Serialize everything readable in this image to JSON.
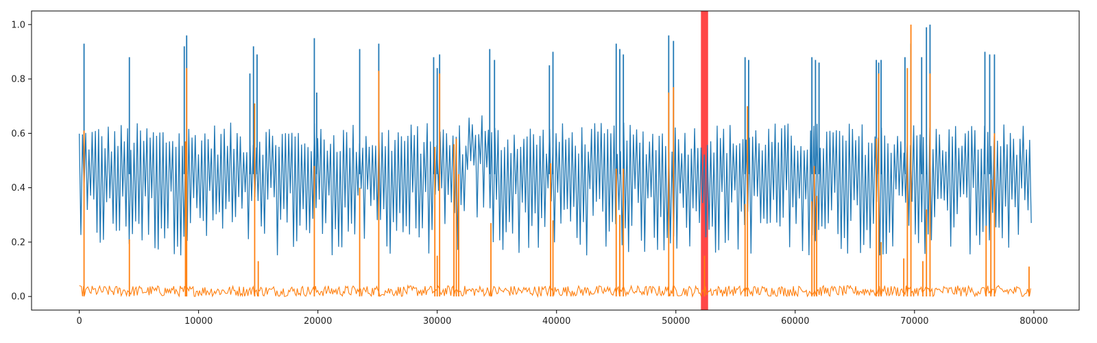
{
  "chart_data": {
    "type": "line",
    "xlim": [
      -4000,
      83800
    ],
    "ylim": [
      -0.05,
      1.05
    ],
    "x_ticks": [
      0,
      10000,
      20000,
      30000,
      40000,
      50000,
      60000,
      70000,
      80000
    ],
    "x_tick_labels": [
      "0",
      "10000",
      "20000",
      "30000",
      "40000",
      "50000",
      "60000",
      "70000",
      "80000"
    ],
    "y_ticks": [
      0.0,
      0.2,
      0.4,
      0.6,
      0.8,
      1.0
    ],
    "y_tick_labels": [
      "0.0",
      "0.2",
      "0.4",
      "0.6",
      "0.8",
      "1.0"
    ],
    "grid": false,
    "legend": "none",
    "highlight_region": {
      "x_start": 52100,
      "x_end": 52700,
      "color": "#ff0000",
      "opacity": 0.72
    },
    "series": [
      {
        "color": "#1f77b4",
        "x_range": [
          0,
          79800
        ],
        "oscillation": {
          "base_low": 0.19,
          "base_high": 0.61,
          "period": 270
        },
        "elevated_segments": [
          [
            32500,
            34200,
            0.66,
            0.3
          ]
        ],
        "spikes": [
          [
            400,
            0.93
          ],
          [
            4200,
            0.88
          ],
          [
            8800,
            0.92
          ],
          [
            9000,
            0.96
          ],
          [
            14300,
            0.82
          ],
          [
            14600,
            0.92
          ],
          [
            14900,
            0.89
          ],
          [
            19700,
            0.95
          ],
          [
            19900,
            0.75
          ],
          [
            23500,
            0.91
          ],
          [
            25100,
            0.93
          ],
          [
            29700,
            0.88
          ],
          [
            30000,
            0.84
          ],
          [
            30200,
            0.89
          ],
          [
            31400,
            0.5
          ],
          [
            31800,
            0.45
          ],
          [
            34400,
            0.91
          ],
          [
            34800,
            0.87
          ],
          [
            39400,
            0.85
          ],
          [
            39700,
            0.9
          ],
          [
            45000,
            0.93
          ],
          [
            45300,
            0.91
          ],
          [
            45600,
            0.89
          ],
          [
            49400,
            0.96
          ],
          [
            49800,
            0.94
          ],
          [
            55800,
            0.88
          ],
          [
            56100,
            0.87
          ],
          [
            61400,
            0.88
          ],
          [
            61700,
            0.87
          ],
          [
            62000,
            0.86
          ],
          [
            66800,
            0.87
          ],
          [
            67000,
            0.86
          ],
          [
            67200,
            0.87
          ],
          [
            69200,
            0.88
          ],
          [
            69700,
            0.93
          ],
          [
            70600,
            0.88
          ],
          [
            71000,
            0.99
          ],
          [
            71300,
            1.0
          ],
          [
            75900,
            0.9
          ],
          [
            76300,
            0.89
          ],
          [
            76700,
            0.89
          ]
        ]
      },
      {
        "color": "#ff7f0e",
        "x_range": [
          0,
          79800
        ],
        "baseline_max": 0.04,
        "spikes": [
          [
            400,
            0.61
          ],
          [
            4200,
            0.21
          ],
          [
            8900,
            0.57
          ],
          [
            9000,
            0.84
          ],
          [
            14700,
            0.71
          ],
          [
            15000,
            0.13
          ],
          [
            19700,
            0.48
          ],
          [
            23500,
            0.4
          ],
          [
            25100,
            0.83
          ],
          [
            29800,
            0.55
          ],
          [
            30000,
            0.15
          ],
          [
            30200,
            0.82
          ],
          [
            31400,
            0.56
          ],
          [
            31600,
            0.58
          ],
          [
            31800,
            0.45
          ],
          [
            34500,
            0.27
          ],
          [
            39500,
            0.49
          ],
          [
            39700,
            0.28
          ],
          [
            45000,
            0.47
          ],
          [
            45300,
            0.3
          ],
          [
            45600,
            0.47
          ],
          [
            49400,
            0.75
          ],
          [
            49800,
            0.77
          ],
          [
            52400,
            0.15
          ],
          [
            55800,
            0.34
          ],
          [
            56000,
            0.7
          ],
          [
            61400,
            0.35
          ],
          [
            61600,
            0.48
          ],
          [
            61800,
            0.37
          ],
          [
            66800,
            0.58
          ],
          [
            67000,
            0.82
          ],
          [
            67200,
            0.2
          ],
          [
            69100,
            0.14
          ],
          [
            69400,
            0.84
          ],
          [
            69700,
            1.0
          ],
          [
            70700,
            0.13
          ],
          [
            71000,
            0.32
          ],
          [
            71300,
            0.82
          ],
          [
            76000,
            0.26
          ],
          [
            76400,
            0.43
          ],
          [
            76700,
            0.6
          ],
          [
            79600,
            0.11
          ]
        ]
      }
    ]
  }
}
